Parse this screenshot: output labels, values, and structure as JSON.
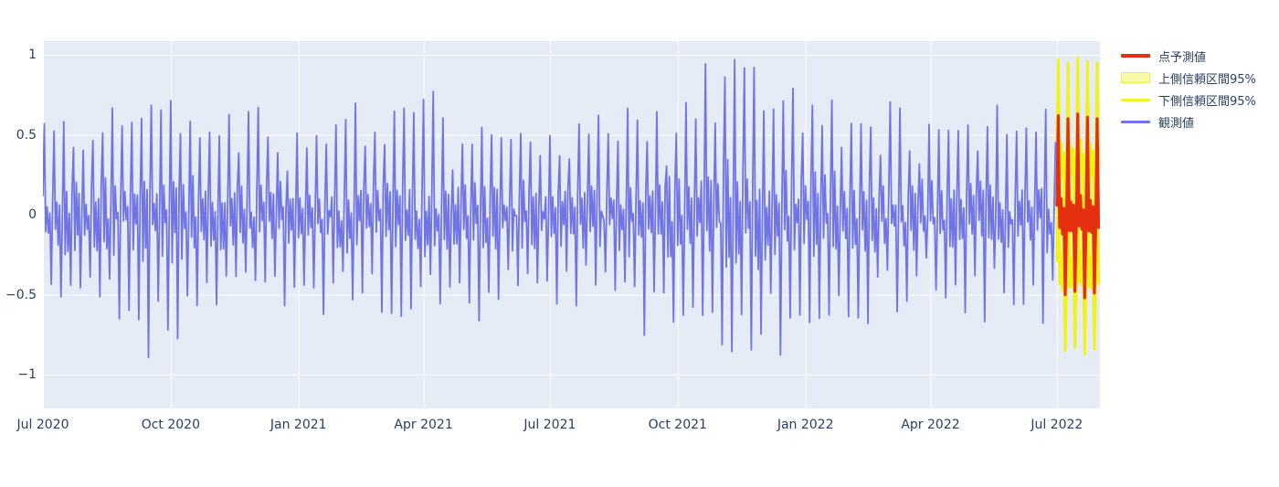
{
  "chart_data": {
    "type": "line",
    "title": "",
    "xlabel": "",
    "ylabel": "",
    "grid": true,
    "legend_position": "right-top-outside",
    "x_axis": {
      "tick_labels": [
        "Jul 2020",
        "Oct 2020",
        "Jan 2021",
        "Apr 2021",
        "Jul 2021",
        "Oct 2021",
        "Jan 2022",
        "Apr 2022",
        "Jul 2022"
      ],
      "tick_days_from_start": [
        0,
        92,
        184,
        274,
        365,
        457,
        549,
        639,
        730
      ],
      "start_date": "2020-07-01",
      "total_days_shown": 761
    },
    "y_axis": {
      "tick_labels": [
        "1",
        "0.5",
        "0",
        "−0.5",
        "−1"
      ],
      "tick_values": [
        1,
        0.5,
        0,
        -0.5,
        -1
      ],
      "range": [
        -1.21,
        1.09
      ]
    },
    "legend": [
      {
        "label": "点予測値",
        "color": "#e43010",
        "swatch": "line",
        "width": 4
      },
      {
        "label": "上側信頼区間95%",
        "color": "#eded55",
        "fill": "#f9f9a6",
        "swatch": "band"
      },
      {
        "label": "下側信頼区間95%",
        "color": "#f3f32a",
        "swatch": "line",
        "width": 3
      },
      {
        "label": "観測値",
        "color": "#7074e4",
        "swatch": "line",
        "width": 3
      }
    ],
    "colors": {
      "plot_bg": "#e5ecf6",
      "grid": "#ffffff",
      "text": "#2a3f5f",
      "observed": "#7074e4",
      "forecast": "#e43010",
      "ci_line": "#f2f218",
      "ci_fill": "rgba(255,255,0,0.5)"
    },
    "series": {
      "observed": {
        "name": "観測値",
        "days": 730,
        "weekly_pattern": [
          0.08,
          0.4,
          -0.12,
          0.1,
          -0.1,
          0.05,
          -0.38
        ],
        "noise_amplitude": 0.1,
        "spike_days": [
          1,
          6
        ],
        "amplitude_envelope": [
          [
            0,
            1.2
          ],
          [
            60,
            1.3
          ],
          [
            75,
            1.6
          ],
          [
            95,
            1.45
          ],
          [
            120,
            1.15
          ],
          [
            180,
            1.1
          ],
          [
            240,
            1.15
          ],
          [
            274,
            1.35
          ],
          [
            300,
            1.2
          ],
          [
            330,
            1.15
          ],
          [
            365,
            1.1
          ],
          [
            400,
            1.05
          ],
          [
            427,
            1.3
          ],
          [
            457,
            1.4
          ],
          [
            480,
            1.8
          ],
          [
            495,
            2.05
          ],
          [
            515,
            1.9
          ],
          [
            535,
            1.55
          ],
          [
            560,
            1.55
          ],
          [
            585,
            1.3
          ],
          [
            615,
            1.15
          ],
          [
            660,
            1.15
          ],
          [
            690,
            1.2
          ],
          [
            710,
            1.35
          ],
          [
            729,
            1.5
          ]
        ],
        "seed": 42,
        "approx_min": -1.07,
        "approx_max": 0.94
      },
      "forecast": {
        "name": "点予測値",
        "start_day": 730,
        "values": [
          0.06,
          0.62,
          -0.08,
          0.1,
          -0.12,
          0.04,
          -0.5,
          -0.04,
          0.6,
          -0.1,
          0.08,
          -0.1,
          0.06,
          -0.48,
          -0.06,
          0.63,
          -0.07,
          0.12,
          -0.09,
          0.03,
          -0.52,
          -0.03,
          0.61,
          -0.1,
          0.09,
          -0.11,
          0.05,
          -0.49,
          -0.05,
          0.6,
          -0.08
        ]
      },
      "confidence_interval": {
        "upper_name": "上側信頼区間95%",
        "lower_name": "下側信頼区間95%",
        "level": "95%",
        "half_width": 0.35
      }
    }
  }
}
